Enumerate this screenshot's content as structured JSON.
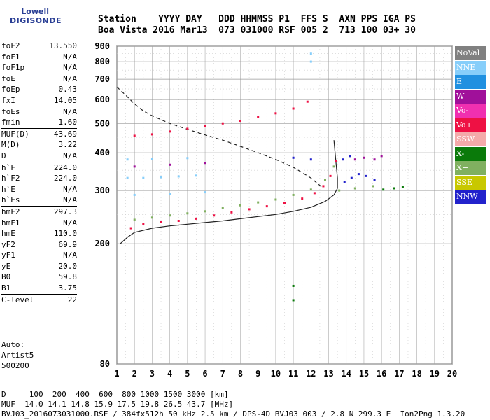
{
  "logo": {
    "top": "Lowell",
    "bottom": "DIGISONDE"
  },
  "header": {
    "line1": "Station    YYYY DAY   DDD HHMMSS P1  FFS S  AXN PPS IGA PS",
    "line2": "Boa Vista 2016 Mar13  073 031000 RSF 005 2  713 100 03+ 30"
  },
  "params": [
    {
      "name": "foF2",
      "value": "13.550",
      "sep": false
    },
    {
      "name": "foF1",
      "value": "N/A",
      "sep": false
    },
    {
      "name": "foF1p",
      "value": "N/A",
      "sep": false
    },
    {
      "name": "foE",
      "value": "N/A",
      "sep": false
    },
    {
      "name": "foEp",
      "value": "0.43",
      "sep": false
    },
    {
      "name": "fxI",
      "value": "14.05",
      "sep": false
    },
    {
      "name": "foEs",
      "value": "N/A",
      "sep": false
    },
    {
      "name": "fmin",
      "value": "1.60",
      "sep": true
    },
    {
      "name": "MUF(D)",
      "value": "43.69",
      "sep": false
    },
    {
      "name": "M(D)",
      "value": "3.22",
      "sep": false
    },
    {
      "name": "D",
      "value": "N/A",
      "sep": true
    },
    {
      "name": "h`F",
      "value": "224.0",
      "sep": false
    },
    {
      "name": "h`F2",
      "value": "224.0",
      "sep": false
    },
    {
      "name": "h`E",
      "value": "N/A",
      "sep": false
    },
    {
      "name": "h`Es",
      "value": "N/A",
      "sep": true
    },
    {
      "name": "hmF2",
      "value": "297.3",
      "sep": false
    },
    {
      "name": "hmF1",
      "value": "N/A",
      "sep": false
    },
    {
      "name": "hmE",
      "value": "110.0",
      "sep": false
    },
    {
      "name": "yF2",
      "value": "69.9",
      "sep": false
    },
    {
      "name": "yF1",
      "value": "N/A",
      "sep": false
    },
    {
      "name": "yE",
      "value": "20.0",
      "sep": false
    },
    {
      "name": "B0",
      "value": "59.8",
      "sep": false
    },
    {
      "name": "B1",
      "value": "3.75",
      "sep": true
    },
    {
      "name": "C-level",
      "value": "22",
      "sep": false
    }
  ],
  "auto": {
    "l1": "Auto:",
    "l2": "Artist5",
    "l3": "500200"
  },
  "footer": {
    "line1": "D     100  200  400  600  800 1000 1500 3000 [km]",
    "line2": "MUF  14.0 14.1 14.8 15.9 17.5 19.8 26.5 43.7 [MHz]",
    "line3": "BVJ03_2016073031000.RSF / 384fx512h 50 kHz 2.5 km / DPS-4D BVJ03 003 / 2.8 N 299.3 E  Ion2Png 1.3.20"
  },
  "legend": [
    {
      "label": "NoVal",
      "color": "#808080"
    },
    {
      "label": "NNE",
      "color": "#87cefa"
    },
    {
      "label": "E",
      "color": "#2090e0"
    },
    {
      "label": "W",
      "color": "#a0109a"
    },
    {
      "label": "Vo-",
      "color": "#f030b0"
    },
    {
      "label": "Vo+",
      "color": "#ee1144"
    },
    {
      "label": "SSW",
      "color": "#f4aaaa"
    },
    {
      "label": "X-",
      "color": "#0a7a0a"
    },
    {
      "label": "X+",
      "color": "#80b060"
    },
    {
      "label": "SSE",
      "color": "#c8c800"
    },
    {
      "label": "NNW",
      "color": "#2222cc"
    }
  ],
  "chart_data": {
    "type": "scatter",
    "title": "",
    "xlabel": "",
    "ylabel": "",
    "xlim": [
      1,
      20
    ],
    "ylim": [
      80,
      900
    ],
    "y_scale": "log",
    "x_ticks": [
      1,
      2,
      3,
      4,
      5,
      6,
      7,
      8,
      9,
      10,
      11,
      12,
      13,
      14,
      15,
      16,
      17,
      18,
      19,
      20
    ],
    "y_ticks": [
      80,
      200,
      300,
      400,
      500,
      600,
      700,
      800,
      900
    ],
    "grid": true,
    "series": [
      {
        "name": "Vo+",
        "color": "#ee1144",
        "points": [
          [
            1.8,
            225
          ],
          [
            2.5,
            232
          ],
          [
            3.5,
            236
          ],
          [
            4.5,
            238
          ],
          [
            5.5,
            242
          ],
          [
            6.5,
            248
          ],
          [
            7.5,
            254
          ],
          [
            8.5,
            260
          ],
          [
            9.5,
            266
          ],
          [
            10.5,
            272
          ],
          [
            11.5,
            282
          ],
          [
            12.2,
            294
          ],
          [
            12.7,
            310
          ],
          [
            13.1,
            335
          ],
          [
            13.4,
            375
          ],
          [
            2,
            455
          ],
          [
            3,
            460
          ],
          [
            4,
            470
          ],
          [
            5,
            480
          ],
          [
            6,
            490
          ],
          [
            7,
            500
          ],
          [
            8,
            510
          ],
          [
            9,
            525
          ],
          [
            10,
            540
          ],
          [
            11,
            560
          ],
          [
            11.8,
            590
          ]
        ]
      },
      {
        "name": "X+",
        "color": "#80b060",
        "points": [
          [
            2,
            240
          ],
          [
            3,
            244
          ],
          [
            4,
            248
          ],
          [
            5,
            252
          ],
          [
            6,
            256
          ],
          [
            7,
            262
          ],
          [
            8,
            268
          ],
          [
            9,
            274
          ],
          [
            10,
            280
          ],
          [
            11,
            290
          ],
          [
            12,
            302
          ],
          [
            12.8,
            325
          ],
          [
            13.3,
            360
          ],
          [
            13.6,
            300
          ],
          [
            14.5,
            305
          ],
          [
            15.5,
            310
          ]
        ]
      },
      {
        "name": "NNE",
        "color": "#87cefa",
        "points": [
          [
            1.6,
            330
          ],
          [
            2.5,
            330
          ],
          [
            3.5,
            332
          ],
          [
            4.5,
            334
          ],
          [
            5.5,
            336
          ],
          [
            1.6,
            380
          ],
          [
            3,
            382
          ],
          [
            5,
            384
          ],
          [
            2,
            290
          ],
          [
            4,
            292
          ],
          [
            6,
            296
          ],
          [
            12,
            850
          ],
          [
            12,
            800
          ]
        ]
      },
      {
        "name": "NNW",
        "color": "#2222cc",
        "points": [
          [
            13.9,
            320
          ],
          [
            14.3,
            330
          ],
          [
            14.7,
            340
          ],
          [
            15.1,
            335
          ],
          [
            15.6,
            325
          ],
          [
            13.8,
            380
          ],
          [
            14.2,
            390
          ],
          [
            12,
            380
          ],
          [
            11,
            385
          ]
        ]
      },
      {
        "name": "W",
        "color": "#a0109a",
        "points": [
          [
            14.5,
            380
          ],
          [
            15.0,
            385
          ],
          [
            15.6,
            380
          ],
          [
            16.0,
            390
          ],
          [
            2,
            360
          ],
          [
            4,
            365
          ],
          [
            6,
            370
          ]
        ]
      },
      {
        "name": "X-",
        "color": "#0a7a0a",
        "points": [
          [
            16.1,
            302
          ],
          [
            16.7,
            305
          ],
          [
            17.2,
            308
          ],
          [
            11,
            130
          ],
          [
            11,
            145
          ]
        ]
      }
    ],
    "curves": [
      {
        "name": "profile",
        "style": "solid",
        "points": [
          [
            1.2,
            200
          ],
          [
            1.6,
            210
          ],
          [
            2,
            218
          ],
          [
            3,
            225
          ],
          [
            4,
            229
          ],
          [
            5,
            232
          ],
          [
            6,
            235
          ],
          [
            7,
            238
          ],
          [
            8,
            242
          ],
          [
            9,
            246
          ],
          [
            10,
            250
          ],
          [
            11,
            256
          ],
          [
            12,
            264
          ],
          [
            12.8,
            276
          ],
          [
            13.3,
            290
          ],
          [
            13.5,
            305
          ],
          [
            13.5,
            330
          ],
          [
            13.4,
            380
          ],
          [
            13.3,
            440
          ]
        ]
      },
      {
        "name": "muf",
        "style": "dashed",
        "points": [
          [
            1,
            660
          ],
          [
            1.5,
            620
          ],
          [
            2,
            580
          ],
          [
            2.5,
            550
          ],
          [
            3,
            530
          ],
          [
            4,
            500
          ],
          [
            5,
            478
          ],
          [
            6,
            458
          ],
          [
            7,
            440
          ],
          [
            8,
            420
          ],
          [
            9,
            400
          ],
          [
            10,
            380
          ],
          [
            11,
            358
          ],
          [
            12,
            330
          ],
          [
            12.7,
            305
          ]
        ]
      }
    ]
  }
}
